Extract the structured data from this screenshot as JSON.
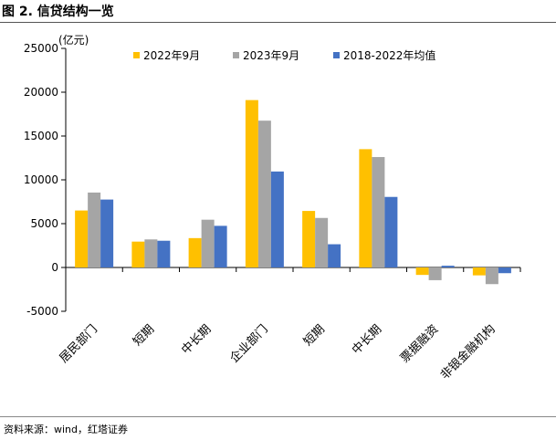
{
  "figure": {
    "title": "图 2. 信贷结构一览",
    "source": "资料来源：wind，红塔证券"
  },
  "chart_data": {
    "type": "bar",
    "unit_label": "(亿元)",
    "categories": [
      "居民部门",
      "短期",
      "中长期",
      "企业部门",
      "短期",
      "中长期",
      "票据融资",
      "非银金融机构"
    ],
    "series": [
      {
        "name": "2022年9月",
        "color": "#FFC000",
        "values": [
          6500,
          2950,
          3350,
          19100,
          6450,
          13500,
          -850,
          -900
        ]
      },
      {
        "name": "2023年9月",
        "color": "#A5A5A5",
        "values": [
          8550,
          3200,
          5450,
          16750,
          5650,
          12600,
          -1450,
          -1900
        ]
      },
      {
        "name": "2018-2022年均值",
        "color": "#4472C4",
        "values": [
          7750,
          3050,
          4750,
          10950,
          2650,
          8050,
          200,
          -650
        ]
      }
    ],
    "ylim": [
      -5000,
      25000
    ],
    "yticks": [
      -5000,
      0,
      5000,
      10000,
      15000,
      20000,
      25000
    ],
    "ytick_labels": [
      "-5000",
      "0",
      "5000",
      "10000",
      "15000",
      "20000",
      "25000"
    ],
    "grid": false,
    "legend_position": "top"
  }
}
